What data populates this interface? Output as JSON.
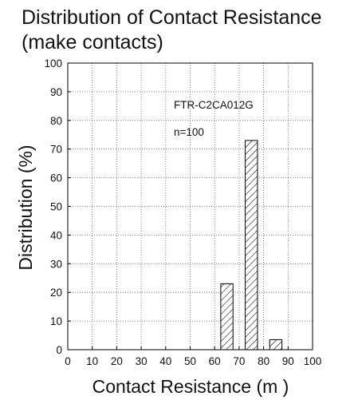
{
  "chart_data": {
    "type": "bar",
    "title_line1": "Distribution of Contact Resistance",
    "title_line2": "(make contacts)",
    "xlabel": "Contact Resistance (m )",
    "ylabel": "Distribution (%)",
    "xlim": [
      0,
      100
    ],
    "ylim": [
      0,
      100
    ],
    "xticks": [
      0,
      10,
      20,
      30,
      40,
      50,
      60,
      70,
      80,
      90,
      100
    ],
    "yticks": [
      0,
      10,
      20,
      30,
      40,
      50,
      60,
      70,
      80,
      90,
      100
    ],
    "grid": true,
    "bar_fill": "hatched",
    "bars": [
      {
        "x_start": 62.5,
        "x_end": 67.5,
        "value": 23
      },
      {
        "x_start": 72.5,
        "x_end": 77.5,
        "value": 73
      },
      {
        "x_start": 82.5,
        "x_end": 87.5,
        "value": 3.5
      }
    ],
    "annotations": {
      "line1": "FTR-C2CA012G",
      "line2": "n=100"
    }
  }
}
